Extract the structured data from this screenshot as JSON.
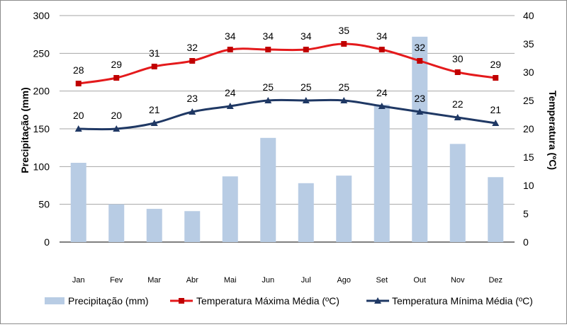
{
  "chart_data": {
    "type": "bar+line",
    "categories": [
      "Jan",
      "Fev",
      "Mar",
      "Abr",
      "Mai",
      "Jun",
      "Jul",
      "Ago",
      "Set",
      "Out",
      "Nov",
      "Dez"
    ],
    "bars": {
      "name": "Precipitação (mm)",
      "color": "#b8cce4",
      "axis": "left",
      "values": [
        105,
        50,
        44,
        41,
        87,
        138,
        78,
        88,
        182,
        272,
        130,
        86
      ]
    },
    "series": [
      {
        "name": "Temperatura Máxima Média  (ºC)",
        "color": "#e41a1c",
        "marker": "square",
        "axis": "right",
        "values": [
          28,
          29,
          31,
          32,
          34,
          34,
          34,
          35,
          34,
          32,
          30,
          29
        ]
      },
      {
        "name": "Temperatura Mínima Média (ºC)",
        "color": "#1f3864",
        "marker": "triangle",
        "axis": "right",
        "values": [
          20,
          20,
          21,
          23,
          24,
          25,
          25,
          25,
          24,
          23,
          22,
          21
        ]
      }
    ],
    "ylabel_left": "Precipitação (mm)",
    "ylabel_right": "Temperatura (ºC)",
    "ylim_left": [
      0,
      300
    ],
    "yticks_left": [
      0,
      50,
      100,
      150,
      200,
      250,
      300
    ],
    "ylim_right": [
      0,
      40
    ],
    "yticks_right": [
      0,
      5,
      10,
      15,
      20,
      25,
      30,
      35,
      40
    ],
    "grid": true,
    "legend": "bottom"
  }
}
